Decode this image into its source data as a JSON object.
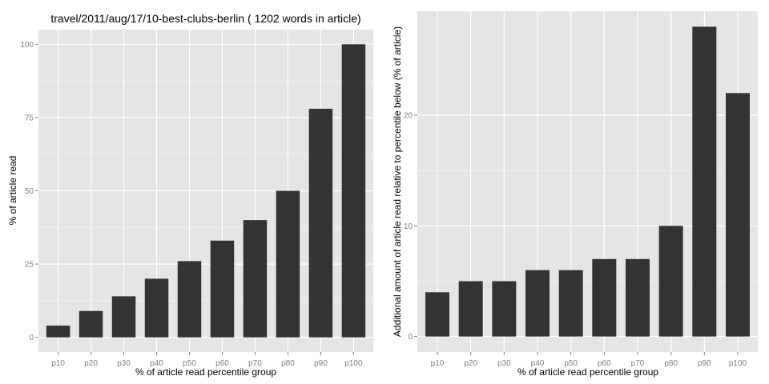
{
  "colors": {
    "panel_background": "#e5e5e5",
    "gridline": "#ffffff",
    "bar_fill": "#333333",
    "tick_label": "#7f7f7f"
  },
  "chart_data": [
    {
      "type": "bar",
      "title": "travel/2011/aug/17/10-best-clubs-berlin ( 1202 words in article)",
      "xlabel": "% of article read percentile group",
      "ylabel": "% of article read",
      "categories": [
        "p10",
        "p20",
        "p30",
        "p40",
        "p50",
        "p60",
        "p70",
        "p80",
        "p90",
        "p100"
      ],
      "values": [
        4,
        9,
        14,
        20,
        26,
        33,
        40,
        50,
        78,
        100
      ],
      "ylim": [
        -5,
        105
      ],
      "yticks": [
        0,
        25,
        50,
        75,
        100
      ],
      "ytick_labels": [
        "0",
        "25",
        "50",
        "75",
        "100"
      ],
      "grid": true,
      "legend": "none"
    },
    {
      "type": "bar",
      "title": "",
      "xlabel": "% of article read percentile group",
      "ylabel": "Additional amount of article read relative to percentile below (% of article)",
      "categories": [
        "p10",
        "p20",
        "p30",
        "p40",
        "p50",
        "p60",
        "p70",
        "p80",
        "p90",
        "p100"
      ],
      "values": [
        4,
        5,
        5,
        6,
        6,
        7,
        7,
        10,
        28,
        22
      ],
      "ylim": [
        -1.4,
        29.4
      ],
      "yticks": [
        0,
        10,
        20
      ],
      "ytick_labels": [
        "0",
        "10",
        "20"
      ],
      "grid": true,
      "legend": "none"
    }
  ]
}
